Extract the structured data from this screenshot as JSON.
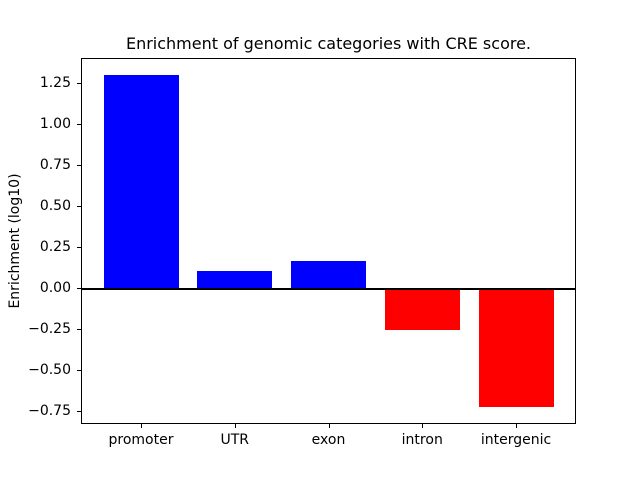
{
  "chart_data": {
    "type": "bar",
    "title": "Enrichment of genomic categories with CRE score.",
    "xlabel": "",
    "ylabel": "Enrichment (log10)",
    "categories": [
      "promoter",
      "UTR",
      "exon",
      "intron",
      "intergenic"
    ],
    "values": [
      1.3,
      0.1,
      0.16,
      -0.26,
      -0.73
    ],
    "positive_color": "#0000ff",
    "negative_color": "#ff0000",
    "ylim": [
      -0.8315,
      1.4015
    ],
    "yticks": [
      1.25,
      1.0,
      0.75,
      0.5,
      0.25,
      0.0,
      -0.25,
      -0.5,
      -0.75
    ],
    "ytick_labels": [
      "1.25",
      "1.00",
      "0.75",
      "0.50",
      "0.25",
      "0.00",
      "−0.25",
      "−0.50",
      "−0.75"
    ],
    "grid": false,
    "zero_line": true,
    "legend": null,
    "axis_color": "#000000",
    "background_color": "#ffffff"
  }
}
